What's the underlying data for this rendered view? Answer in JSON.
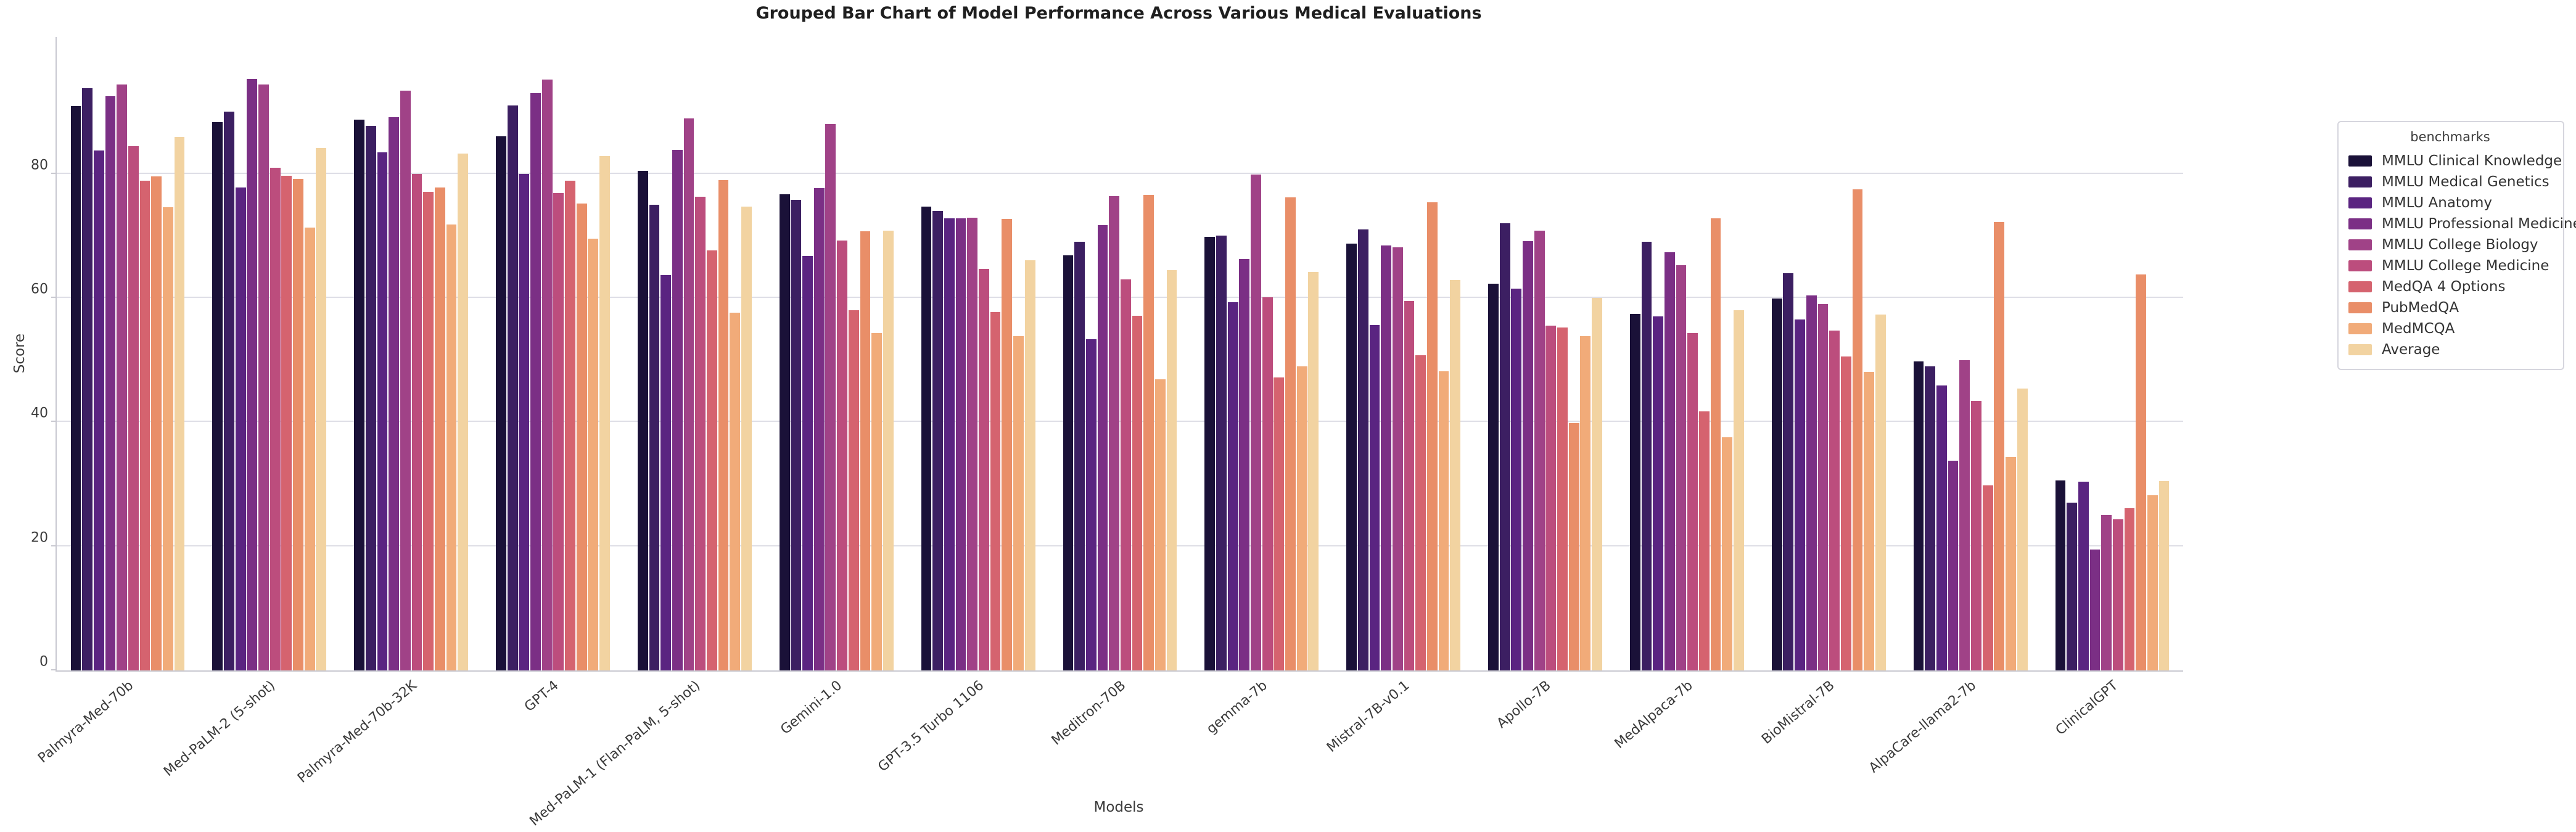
{
  "title": "Grouped Bar Chart of Model Performance Across Various Medical Evaluations",
  "chart_data": {
    "type": "bar",
    "grouped": true,
    "title": "Grouped Bar Chart of Model Performance Across Various Medical Evaluations",
    "xlabel": "Models",
    "ylabel": "Score",
    "ylim": [
      0,
      102
    ],
    "yticks": [
      0,
      20,
      40,
      60,
      80
    ],
    "grid": "horizontal",
    "legend_title": "benchmarks",
    "legend_position": "right",
    "benchmarks": [
      {
        "name": "MMLU Clinical Knowledge",
        "color": "#1a1138"
      },
      {
        "name": "MMLU Medical Genetics",
        "color": "#3c1f62"
      },
      {
        "name": "MMLU Anatomy",
        "color": "#5a2481"
      },
      {
        "name": "MMLU Professional Medicine",
        "color": "#7b2f85"
      },
      {
        "name": "MMLU College Biology",
        "color": "#a04287"
      },
      {
        "name": "MMLU College Medicine",
        "color": "#bc4d7d"
      },
      {
        "name": "MedQA 4 Options",
        "color": "#d5636f"
      },
      {
        "name": "PubMedQA",
        "color": "#e98e68"
      },
      {
        "name": "MedMCQA",
        "color": "#f1ab79"
      },
      {
        "name": "Average",
        "color": "#f2d3a1"
      }
    ],
    "models": [
      {
        "name": "Palmyra-Med-70b",
        "values": [
          90.9,
          93.8,
          83.7,
          92.5,
          94.4,
          84.4,
          78.9,
          79.6,
          74.6,
          85.9
        ]
      },
      {
        "name": "Med-PaLM-2 (5-shot)",
        "values": [
          88.3,
          90.0,
          77.8,
          95.2,
          94.4,
          80.9,
          79.7,
          79.2,
          71.3,
          84.1
        ]
      },
      {
        "name": "Palmyra-Med-70b-32K",
        "values": [
          88.7,
          87.7,
          83.4,
          89.1,
          93.4,
          80.0,
          77.1,
          77.8,
          71.8,
          83.2
        ]
      },
      {
        "name": "GPT-4",
        "values": [
          86.0,
          91.0,
          80.0,
          93.0,
          95.1,
          76.9,
          78.9,
          75.2,
          69.5,
          82.8
        ]
      },
      {
        "name": "Med-PaLM-1 (Flan-PaLM, 5-shot)",
        "values": [
          80.4,
          75.0,
          63.7,
          83.8,
          88.9,
          76.3,
          67.6,
          79.0,
          57.6,
          74.7
        ]
      },
      {
        "name": "Gemini-1.0",
        "values": [
          76.7,
          75.8,
          66.7,
          77.7,
          88.0,
          69.2,
          58.0,
          70.7,
          54.3,
          70.8
        ]
      },
      {
        "name": "GPT-3.5 Turbo 1106",
        "values": [
          74.7,
          74.0,
          72.8,
          72.8,
          72.9,
          64.7,
          57.7,
          72.7,
          53.8,
          66.0
        ]
      },
      {
        "name": "Meditron-70B",
        "values": [
          66.8,
          69.0,
          53.3,
          71.7,
          76.4,
          63.0,
          57.1,
          76.6,
          46.9,
          64.5
        ]
      },
      {
        "name": "gemma-7b",
        "values": [
          69.8,
          70.0,
          59.3,
          66.2,
          79.9,
          60.1,
          47.2,
          76.2,
          49.0,
          64.2
        ]
      },
      {
        "name": "Mistral-7B-v0.1",
        "values": [
          68.7,
          71.0,
          55.6,
          68.4,
          68.1,
          59.5,
          50.8,
          75.4,
          48.2,
          62.9
        ]
      },
      {
        "name": "Apollo-7B",
        "values": [
          62.3,
          72.0,
          61.5,
          69.1,
          70.8,
          55.5,
          55.2,
          39.8,
          53.8,
          60.0
        ]
      },
      {
        "name": "MedAlpaca-7b",
        "values": [
          57.4,
          69.0,
          57.0,
          67.3,
          65.3,
          54.3,
          41.7,
          72.8,
          37.5,
          58.0
        ]
      },
      {
        "name": "BioMistral-7B",
        "values": [
          59.9,
          64.0,
          56.5,
          60.4,
          59.0,
          54.7,
          50.6,
          77.5,
          48.1,
          57.3
        ]
      },
      {
        "name": "AlpaCare-llama2-7b",
        "values": [
          49.8,
          49.0,
          45.9,
          33.8,
          50.0,
          43.4,
          29.8,
          72.2,
          34.4,
          45.4
        ]
      },
      {
        "name": "ClinicalGPT",
        "values": [
          30.6,
          27.0,
          30.4,
          19.5,
          25.0,
          24.3,
          26.1,
          63.8,
          28.2,
          30.5
        ]
      }
    ]
  }
}
